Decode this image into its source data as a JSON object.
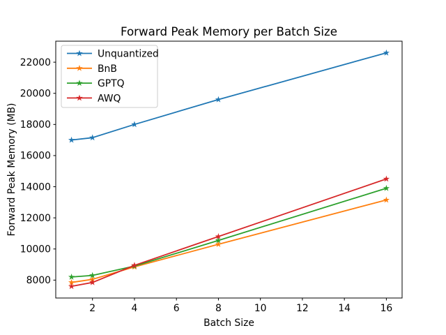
{
  "figure": {
    "background": "#ffffff"
  },
  "chart_data": {
    "type": "line",
    "title": "Forward Peak Memory per Batch Size",
    "xlabel": "Batch Size",
    "ylabel": "Forward Peak Memory (MB)",
    "x": [
      1,
      2,
      4,
      8,
      16
    ],
    "series": [
      {
        "name": "Unquantized",
        "color": "#1f77b4",
        "marker": "star",
        "values": [
          17000,
          17150,
          18000,
          19600,
          22600
        ]
      },
      {
        "name": "BnB",
        "color": "#ff7f0e",
        "marker": "star",
        "values": [
          7850,
          8050,
          8850,
          10300,
          13150
        ]
      },
      {
        "name": "GPTQ",
        "color": "#2ca02c",
        "marker": "star",
        "values": [
          8200,
          8300,
          8900,
          10550,
          13900
        ]
      },
      {
        "name": "AWQ",
        "color": "#d62728",
        "marker": "star",
        "values": [
          7600,
          7850,
          8950,
          10800,
          14500
        ]
      }
    ],
    "xlim": [
      0.25,
      16.75
    ],
    "ylim": [
      6850,
      23350
    ],
    "xticks": [
      2,
      4,
      6,
      8,
      10,
      12,
      14,
      16
    ],
    "yticks": [
      8000,
      10000,
      12000,
      14000,
      16000,
      18000,
      20000,
      22000
    ],
    "grid": false,
    "legend": {
      "position": "upper-left",
      "entries": [
        "Unquantized",
        "BnB",
        "GPTQ",
        "AWQ"
      ]
    },
    "axis_color": "#000000",
    "text_color": "#000000",
    "legend_border_color": "#cccccc"
  }
}
